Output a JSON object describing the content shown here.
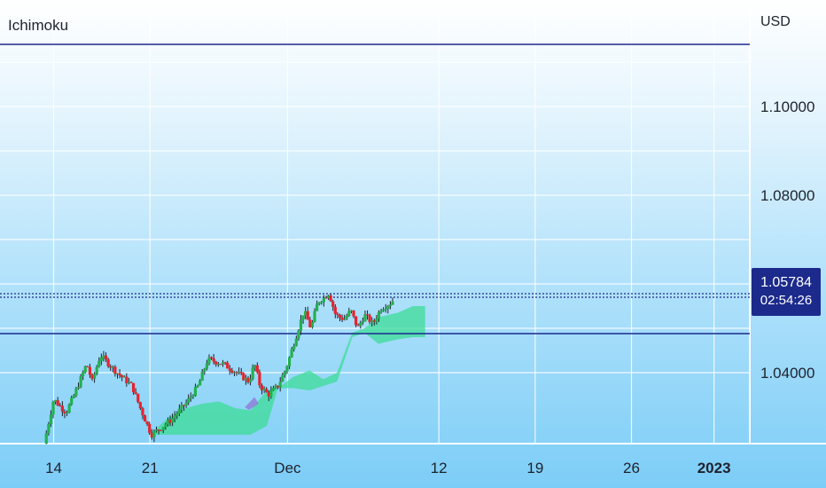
{
  "title": "Ichimoku",
  "currency": "USD",
  "price_badge": {
    "price": "1.05784",
    "countdown": "02:54:26"
  },
  "colors": {
    "up": "#22b14c",
    "down": "#e8222b",
    "cloud": "#3ddc97",
    "cloud_negative": "#8f7bd6",
    "horizontal_line": "#1c2a8c",
    "dotted_line": "#1c2a8c"
  },
  "chart_data": {
    "type": "candlestick",
    "x_ticks": [
      "14",
      "21",
      "Dec",
      "12",
      "19",
      "26",
      "2023"
    ],
    "x_tick_positions_days": [
      0,
      7,
      17,
      28,
      35,
      42,
      48
    ],
    "y_ticks": [
      "1.10000",
      "1.08000",
      "1.04000"
    ],
    "y_tick_values": [
      1.1,
      1.08,
      1.04
    ],
    "ylim": [
      1.024,
      1.124
    ],
    "xlim_days": [
      -3.9,
      50.6
    ],
    "horizontal_lines": [
      1.114,
      1.0488
    ],
    "dotted_lines": [
      1.0578,
      1.057
    ],
    "last_price": 1.05784,
    "anchor_closes": [
      [
        -0.7,
        1.024
      ],
      [
        0.0,
        1.034
      ],
      [
        0.9,
        1.031
      ],
      [
        1.5,
        1.035
      ],
      [
        2.4,
        1.042
      ],
      [
        2.8,
        1.038
      ],
      [
        3.4,
        1.044
      ],
      [
        4.6,
        1.04
      ],
      [
        5.7,
        1.037
      ],
      [
        6.3,
        1.032
      ],
      [
        7.1,
        1.026
      ],
      [
        8.4,
        1.029
      ],
      [
        9.6,
        1.033
      ],
      [
        10.5,
        1.037
      ],
      [
        11.2,
        1.043
      ],
      [
        12.3,
        1.042
      ],
      [
        13.3,
        1.04
      ],
      [
        14.2,
        1.038
      ],
      [
        14.6,
        1.042
      ],
      [
        15.0,
        1.037
      ],
      [
        15.6,
        1.035
      ],
      [
        16.3,
        1.037
      ],
      [
        16.9,
        1.041
      ],
      [
        17.6,
        1.048
      ],
      [
        18.2,
        1.054
      ],
      [
        18.7,
        1.05
      ],
      [
        19.2,
        1.056
      ],
      [
        19.7,
        1.057
      ],
      [
        20.0,
        1.058
      ],
      [
        20.5,
        1.053
      ],
      [
        21.1,
        1.052
      ],
      [
        21.6,
        1.054
      ],
      [
        22.1,
        1.05
      ],
      [
        22.6,
        1.053
      ],
      [
        23.2,
        1.051
      ],
      [
        23.8,
        1.0545
      ],
      [
        24.4,
        1.0555
      ],
      [
        24.8,
        1.0566
      ]
    ],
    "ichimoku_cloud": {
      "days": [
        7.3,
        8.4,
        9.6,
        10.8,
        12.0,
        13.2,
        14.3,
        15.5,
        16.3,
        17.4,
        18.6,
        19.6,
        20.6,
        21.7,
        22.6,
        23.6,
        25.0,
        26.1,
        27.0
      ],
      "upper": [
        1.027,
        1.03,
        1.032,
        1.033,
        1.0335,
        1.032,
        1.0315,
        1.036,
        1.0365,
        1.039,
        1.0405,
        1.0385,
        1.04,
        1.049,
        1.05,
        1.0525,
        1.0535,
        1.055,
        1.055
      ],
      "lower": [
        1.026,
        1.026,
        1.026,
        1.026,
        1.026,
        1.026,
        1.026,
        1.028,
        1.0365,
        1.0365,
        1.036,
        1.037,
        1.038,
        1.048,
        1.049,
        1.0465,
        1.0475,
        1.048,
        1.048
      ]
    }
  }
}
